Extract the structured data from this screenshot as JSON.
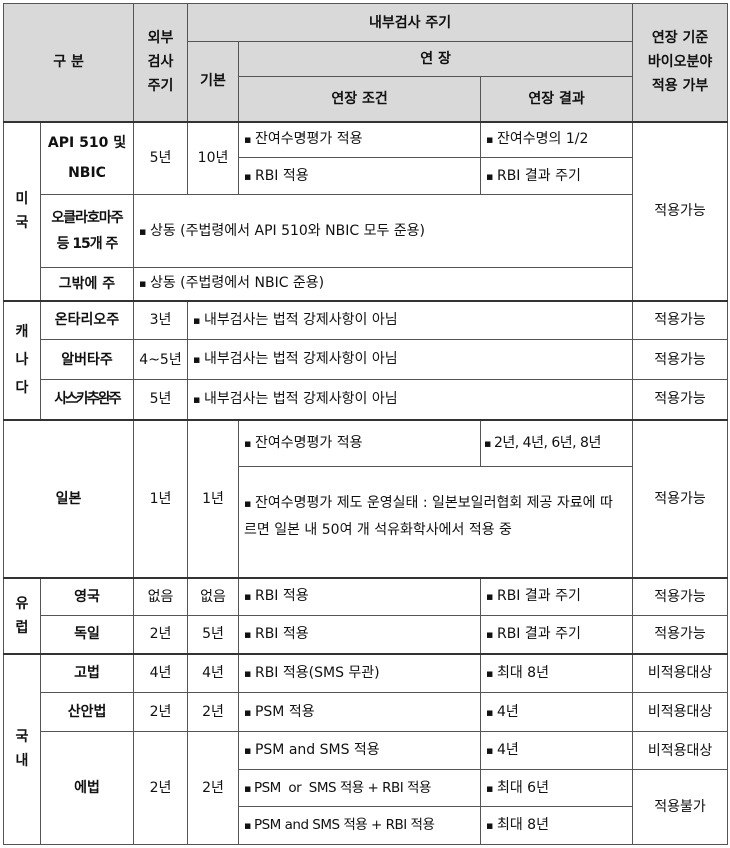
{
  "header": {
    "category": "구 분",
    "external": "외부\n검사\n주기",
    "internal": "내부검사 주기",
    "basic": "기본",
    "extension": "연 장",
    "ext_condition": "연장 조건",
    "ext_result": "연장 결과",
    "applicability": "연장 기준\n바이오분야\n적용 가부"
  },
  "usa": {
    "region": "미\n국",
    "api": {
      "name": "API 510 및\nNBIC",
      "external": "5년",
      "basic": "10년",
      "rows": [
        {
          "condition": "잔여수명평가 적용",
          "result": "잔여수명의 1/2"
        },
        {
          "condition": "RBI 적용",
          "result": "RBI 결과 주기"
        }
      ]
    },
    "oklahoma": {
      "name": "오클라호마주\n등 15개 주",
      "text": "상동 (주법령에서 API 510와 NBIC 모두 준용)"
    },
    "others": {
      "name": "그밖에 주",
      "text": "상동 (주법령에서 NBIC 준용)"
    },
    "applicability": "적용가능"
  },
  "canada": {
    "region": "캐\n나\n다",
    "rows": [
      {
        "name": "온타리오주",
        "external": "3년",
        "text": "내부검사는 법적 강제사항이 아님",
        "applicability": "적용가능"
      },
      {
        "name": "알버타주",
        "external": "4~5년",
        "text": "내부검사는 법적 강제사항이 아님",
        "applicability": "적용가능"
      },
      {
        "name": "사스카추완주",
        "external": "5년",
        "text": "내부검사는 법적 강제사항이 아님",
        "applicability": "적용가능"
      }
    ]
  },
  "japan": {
    "name": "일본",
    "external": "1년",
    "basic": "1년",
    "condition": "잔여수명평가 적용",
    "result": "2년, 4년, 6년, 8년",
    "note": "잔여수명평가 제도 운영실태 : 일본보일러협회 제공 자료에 따르면 일본 내 50여 개 석유화학사에서 적용 중",
    "applicability": "적용가능"
  },
  "europe": {
    "region": "유\n럽",
    "rows": [
      {
        "name": "영국",
        "external": "없음",
        "basic": "없음",
        "condition": "RBI 적용",
        "result": "RBI 결과 주기",
        "applicability": "적용가능"
      },
      {
        "name": "독일",
        "external": "2년",
        "basic": "5년",
        "condition": "RBI 적용",
        "result": "RBI 결과 주기",
        "applicability": "적용가능"
      }
    ]
  },
  "domestic": {
    "region": "국\n내",
    "rows": [
      {
        "name": "고법",
        "external": "4년",
        "basic": "4년",
        "condition": "RBI 적용(SMS 무관)",
        "result": "최대 8년",
        "applicability": "비적용대상"
      },
      {
        "name": "산안법",
        "external": "2년",
        "basic": "2년",
        "condition": "PSM 적용",
        "result": "4년",
        "applicability": "비적용대상"
      }
    ],
    "energy": {
      "name": "에법",
      "external": "2년",
      "basic": "2년",
      "rows": [
        {
          "condition": "PSM and SMS 적용",
          "result": "4년",
          "applicability": "비적용대상"
        },
        {
          "condition": "PSM  or  SMS 적용 + RBI 적용",
          "result": "최대 6년"
        },
        {
          "condition": "PSM and SMS 적용 + RBI 적용",
          "result": "최대 8년"
        }
      ],
      "applicability_rbi": "적용불가"
    }
  }
}
